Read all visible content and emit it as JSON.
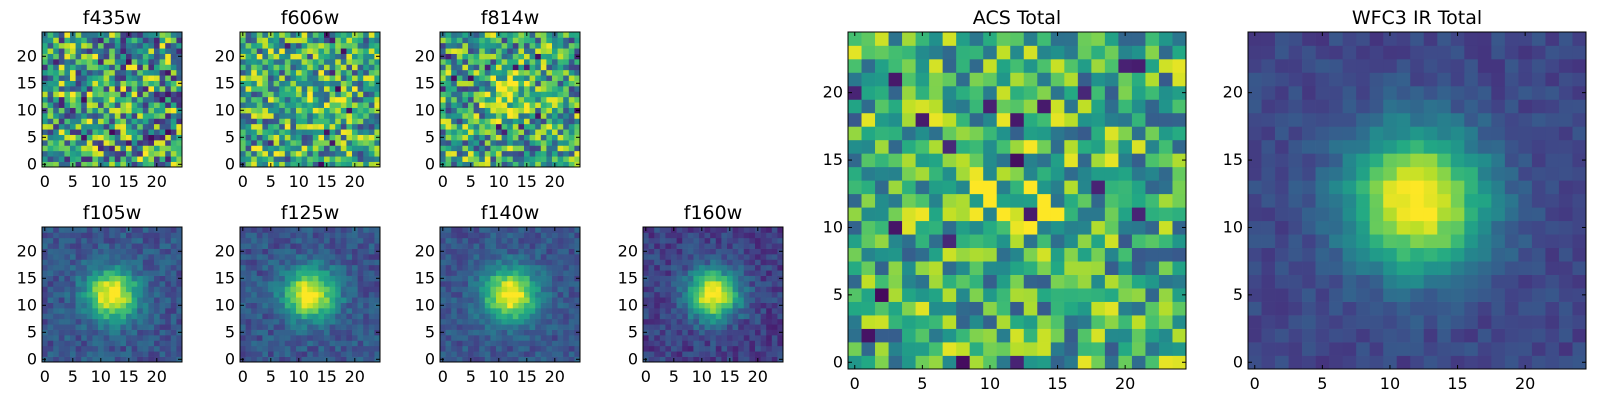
{
  "figure": {
    "background": "#ffffff"
  },
  "chart_data": [
    {
      "type": "heatmap",
      "title": "f435w",
      "colormap": "viridis",
      "grid_size": 25,
      "pattern": "noise",
      "signal_strength": 0.02,
      "noise_amplitude": 0.45,
      "mean_level": 0.55,
      "x_ticks": [
        0,
        5,
        10,
        15,
        20
      ],
      "y_ticks": [
        0,
        5,
        10,
        15,
        20
      ],
      "xlim": [
        0,
        25
      ],
      "ylim": [
        0,
        25
      ]
    },
    {
      "type": "heatmap",
      "title": "f606w",
      "colormap": "viridis",
      "grid_size": 25,
      "pattern": "noise",
      "signal_strength": 0.18,
      "noise_amplitude": 0.4,
      "mean_level": 0.6,
      "x_ticks": [
        0,
        5,
        10,
        15,
        20
      ],
      "y_ticks": [
        0,
        5,
        10,
        15,
        20
      ],
      "xlim": [
        0,
        25
      ],
      "ylim": [
        0,
        25
      ]
    },
    {
      "type": "heatmap",
      "title": "f814w",
      "colormap": "viridis",
      "grid_size": 25,
      "pattern": "noise",
      "signal_strength": 0.28,
      "noise_amplitude": 0.4,
      "mean_level": 0.58,
      "x_ticks": [
        0,
        5,
        10,
        15,
        20
      ],
      "y_ticks": [
        0,
        5,
        10,
        15,
        20
      ],
      "xlim": [
        0,
        25
      ],
      "ylim": [
        0,
        25
      ]
    },
    {
      "type": "heatmap",
      "title": "f105w",
      "colormap": "viridis",
      "grid_size": 25,
      "pattern": "gaussian",
      "center": [
        12,
        12
      ],
      "sigma": 3.2,
      "background": 0.25,
      "noise_amplitude": 0.1,
      "x_ticks": [
        0,
        5,
        10,
        15,
        20
      ],
      "y_ticks": [
        0,
        5,
        10,
        15,
        20
      ],
      "xlim": [
        0,
        25
      ],
      "ylim": [
        0,
        25
      ]
    },
    {
      "type": "heatmap",
      "title": "f125w",
      "colormap": "viridis",
      "grid_size": 25,
      "pattern": "gaussian",
      "center": [
        12,
        12
      ],
      "sigma": 3.2,
      "background": 0.25,
      "noise_amplitude": 0.1,
      "x_ticks": [
        0,
        5,
        10,
        15,
        20
      ],
      "y_ticks": [
        0,
        5,
        10,
        15,
        20
      ],
      "xlim": [
        0,
        25
      ],
      "ylim": [
        0,
        25
      ]
    },
    {
      "type": "heatmap",
      "title": "f140w",
      "colormap": "viridis",
      "grid_size": 25,
      "pattern": "gaussian",
      "center": [
        12,
        12
      ],
      "sigma": 3.3,
      "background": 0.25,
      "noise_amplitude": 0.09,
      "x_ticks": [
        0,
        5,
        10,
        15,
        20
      ],
      "y_ticks": [
        0,
        5,
        10,
        15,
        20
      ],
      "xlim": [
        0,
        25
      ],
      "ylim": [
        0,
        25
      ]
    },
    {
      "type": "heatmap",
      "title": "f160w",
      "colormap": "viridis",
      "grid_size": 25,
      "pattern": "gaussian",
      "center": [
        12,
        12
      ],
      "sigma": 3.2,
      "background": 0.18,
      "noise_amplitude": 0.1,
      "x_ticks": [
        0,
        5,
        10,
        15,
        20
      ],
      "y_ticks": [
        0,
        5,
        10,
        15,
        20
      ],
      "xlim": [
        0,
        25
      ],
      "ylim": [
        0,
        25
      ]
    },
    {
      "type": "heatmap",
      "title": "ACS Total",
      "colormap": "viridis",
      "grid_size": 25,
      "pattern": "noise",
      "signal_strength": 0.15,
      "noise_amplitude": 0.35,
      "mean_level": 0.62,
      "x_ticks": [
        0,
        5,
        10,
        15,
        20
      ],
      "y_ticks": [
        0,
        5,
        10,
        15,
        20
      ],
      "xlim": [
        0,
        25
      ],
      "ylim": [
        0,
        25
      ]
    },
    {
      "type": "heatmap",
      "title": "WFC3 IR Total",
      "colormap": "viridis",
      "grid_size": 25,
      "pattern": "gaussian",
      "center": [
        12,
        12
      ],
      "sigma": 3.6,
      "background": 0.2,
      "noise_amplitude": 0.06,
      "x_ticks": [
        0,
        5,
        10,
        15,
        20
      ],
      "y_ticks": [
        0,
        5,
        10,
        15,
        20
      ],
      "xlim": [
        0,
        25
      ],
      "ylim": [
        0,
        25
      ]
    }
  ]
}
